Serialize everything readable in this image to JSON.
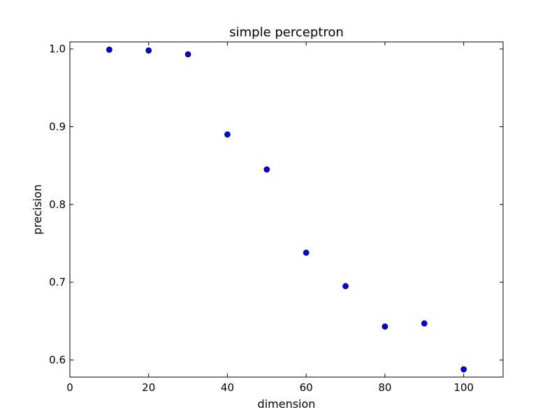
{
  "chart_data": {
    "type": "scatter",
    "title": "simple perceptron",
    "xlabel": "dimension",
    "ylabel": "precision",
    "xlim": [
      0,
      110
    ],
    "ylim": [
      0.578,
      1.009
    ],
    "xticks": [
      0,
      20,
      40,
      60,
      80,
      100
    ],
    "xtick_labels": [
      "0",
      "20",
      "40",
      "60",
      "80",
      "100"
    ],
    "yticks": [
      0.6,
      0.7,
      0.8,
      0.9,
      1.0
    ],
    "ytick_labels": [
      "0.6",
      "0.7",
      "0.8",
      "0.9",
      "1.0"
    ],
    "grid": false,
    "marker_color": "#0000ee",
    "series": [
      {
        "x": [
          10,
          20,
          30,
          40,
          50,
          60,
          70,
          80,
          90,
          100
        ],
        "y": [
          0.999,
          0.998,
          0.993,
          0.89,
          0.845,
          0.738,
          0.695,
          0.643,
          0.647,
          0.588
        ]
      }
    ]
  }
}
